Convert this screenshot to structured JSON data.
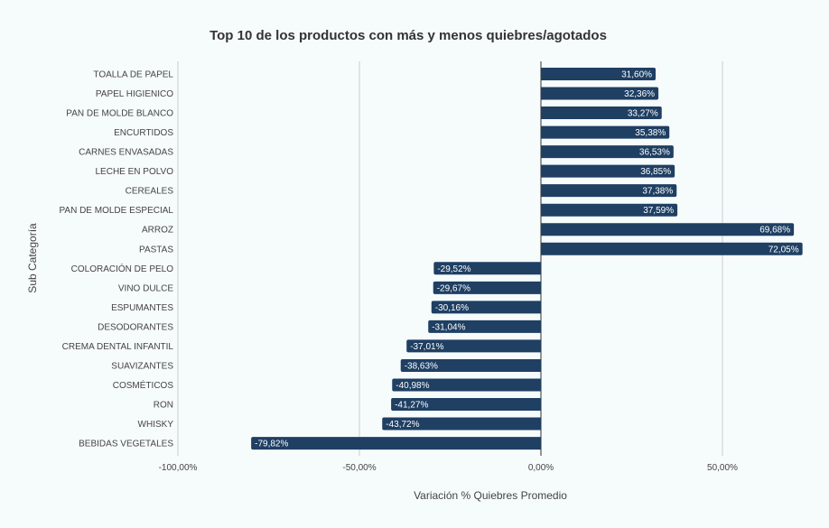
{
  "chart_data": {
    "type": "bar",
    "orientation": "horizontal",
    "title": "Top 10 de los productos con más y menos quiebres/agotados",
    "xlabel": "Variación % Quiebres Promedio",
    "ylabel": "Sub Categoría",
    "xlim": [
      -100,
      75
    ],
    "xticks": [
      -100,
      -50,
      0,
      50
    ],
    "xtick_labels": [
      "-100,00%",
      "-50,00%",
      "0,00%",
      "50,00%"
    ],
    "grid": "vertical",
    "bar_color": "#1f3f63",
    "categories": [
      "TOALLA DE PAPEL",
      "PAPEL HIGIENICO",
      "PAN DE MOLDE BLANCO",
      "ENCURTIDOS",
      "CARNES ENVASADAS",
      "LECHE EN POLVO",
      "CEREALES",
      "PAN DE MOLDE ESPECIAL",
      "ARROZ",
      "PASTAS",
      "COLORACIÓN DE PELO",
      "VINO DULCE",
      "ESPUMANTES",
      "DESODORANTES",
      "CREMA DENTAL INFANTIL",
      "SUAVIZANTES",
      "COSMÉTICOS",
      "RON",
      "WHISKY",
      "BEBIDAS VEGETALES"
    ],
    "values": [
      31.6,
      32.36,
      33.27,
      35.38,
      36.53,
      36.85,
      37.38,
      37.59,
      69.68,
      72.05,
      -29.52,
      -29.67,
      -30.16,
      -31.04,
      -37.01,
      -38.63,
      -40.98,
      -41.27,
      -43.72,
      -79.82
    ],
    "data_labels": [
      "31,60%",
      "32,36%",
      "33,27%",
      "35,38%",
      "36,53%",
      "36,85%",
      "37,38%",
      "37,59%",
      "69,68%",
      "72,05%",
      "-29,52%",
      "-29,67%",
      "-30,16%",
      "-31,04%",
      "-37,01%",
      "-38,63%",
      "-40,98%",
      "-41,27%",
      "-43,72%",
      "-79,82%"
    ]
  }
}
